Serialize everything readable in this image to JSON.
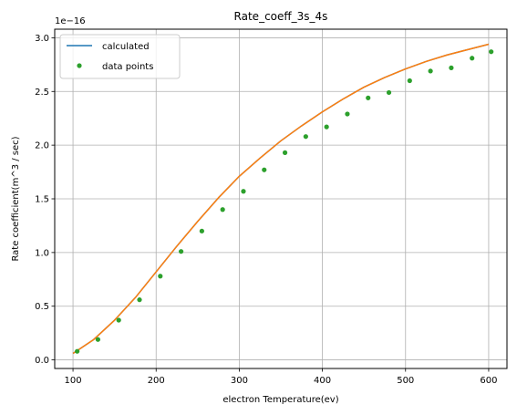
{
  "chart_data": {
    "type": "line",
    "title": "Rate_coeff_3s_4s",
    "xlabel": "electron Temperature(ev)",
    "ylabel": "Rate coefficient(m^3 / sec)",
    "y_offset_label": "1e−16",
    "xlim": [
      78,
      622
    ],
    "ylim": [
      -0.08,
      3.08
    ],
    "xticks": [
      100,
      200,
      300,
      400,
      500,
      600
    ],
    "yticks": [
      0.0,
      0.5,
      1.0,
      1.5,
      2.0,
      2.5,
      3.0
    ],
    "xtick_labels": [
      "100",
      "200",
      "300",
      "400",
      "500",
      "600"
    ],
    "ytick_labels": [
      "0.0",
      "0.5",
      "1.0",
      "1.5",
      "2.0",
      "2.5",
      "3.0"
    ],
    "grid": true,
    "legend_position": "upper-left",
    "series": [
      {
        "name": "calculated",
        "kind": "line",
        "color": "#1f77b4",
        "x": [
          100,
          125,
          150,
          175,
          200,
          225,
          250,
          275,
          300,
          325,
          350,
          375,
          400,
          425,
          450,
          475,
          500,
          525,
          550,
          575,
          600
        ],
        "y": [
          0.06,
          0.19,
          0.37,
          0.58,
          0.82,
          1.06,
          1.29,
          1.51,
          1.71,
          1.88,
          2.04,
          2.18,
          2.31,
          2.43,
          2.54,
          2.63,
          2.71,
          2.78,
          2.84,
          2.89,
          2.94
        ]
      },
      {
        "name": "",
        "kind": "line",
        "color": "#ff7f0e",
        "x": [
          100,
          125,
          150,
          175,
          200,
          225,
          250,
          275,
          300,
          325,
          350,
          375,
          400,
          425,
          450,
          475,
          500,
          525,
          550,
          575,
          600
        ],
        "y": [
          0.06,
          0.19,
          0.37,
          0.58,
          0.82,
          1.06,
          1.29,
          1.51,
          1.71,
          1.88,
          2.04,
          2.18,
          2.31,
          2.43,
          2.54,
          2.63,
          2.71,
          2.78,
          2.84,
          2.89,
          2.94
        ]
      },
      {
        "name": "data points",
        "kind": "scatter",
        "color": "#2ca02c",
        "x": [
          105,
          130,
          155,
          180,
          205,
          230,
          255,
          280,
          305,
          330,
          355,
          380,
          405,
          430,
          455,
          480,
          505,
          530,
          555,
          580,
          603
        ],
        "y": [
          0.08,
          0.19,
          0.37,
          0.56,
          0.78,
          1.01,
          1.2,
          1.4,
          1.57,
          1.77,
          1.93,
          2.08,
          2.17,
          2.29,
          2.44,
          2.49,
          2.6,
          2.69,
          2.72,
          2.81,
          2.87
        ]
      }
    ]
  }
}
